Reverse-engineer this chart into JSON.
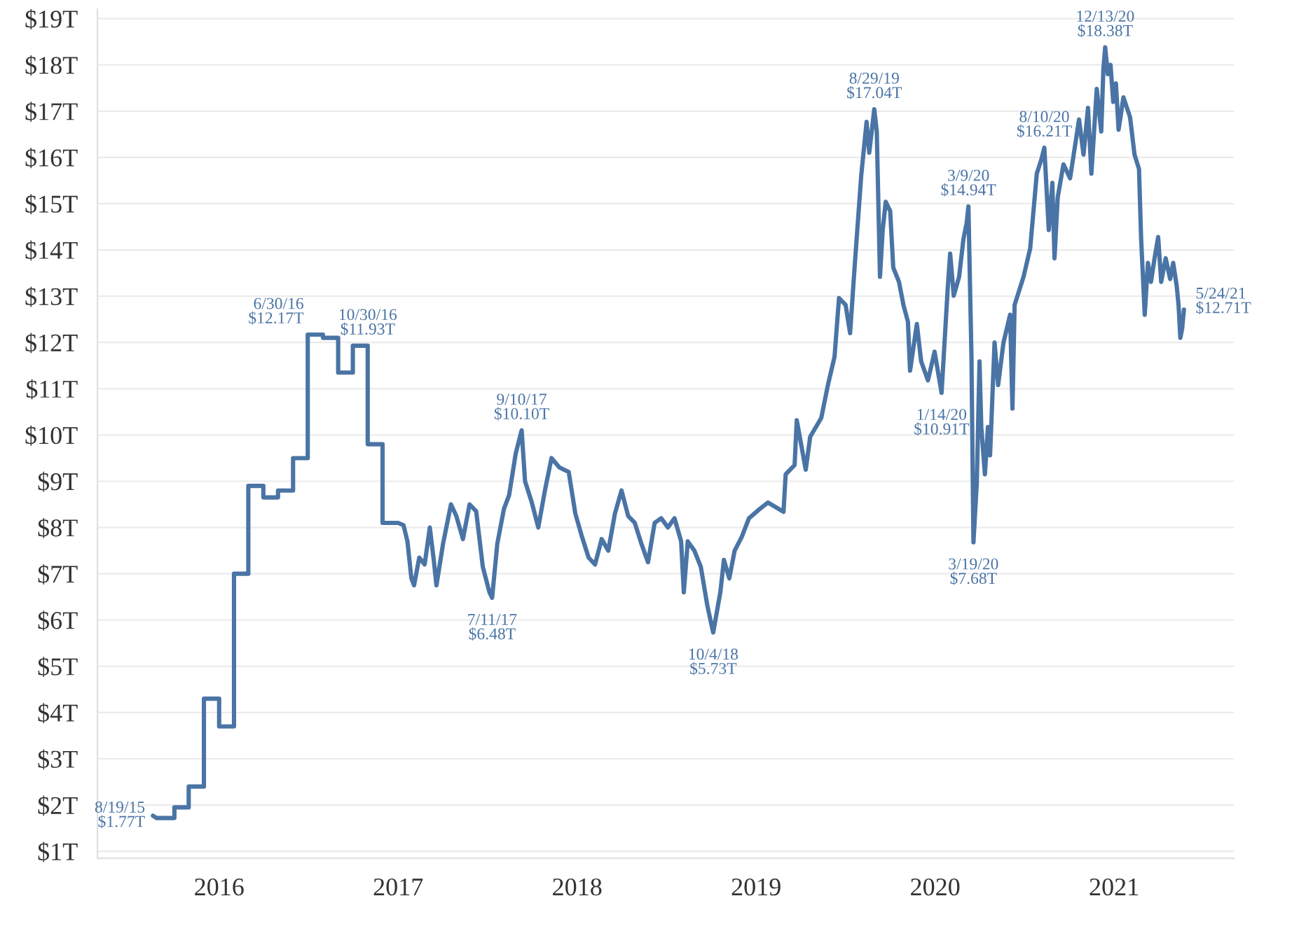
{
  "chart_data": {
    "type": "line",
    "xlim": [
      2015.32,
      2021.67
    ],
    "xticks": [
      2016,
      2017,
      2018,
      2019,
      2020,
      2021
    ],
    "ylim": [
      0.85,
      19.2
    ],
    "yticks": [
      {
        "value": 1,
        "label": "$1T"
      },
      {
        "value": 2,
        "label": "$2T"
      },
      {
        "value": 3,
        "label": "$3T"
      },
      {
        "value": 4,
        "label": "$4T"
      },
      {
        "value": 5,
        "label": "$5T"
      },
      {
        "value": 6,
        "label": "$6T"
      },
      {
        "value": 7,
        "label": "$7T"
      },
      {
        "value": 8,
        "label": "$8T"
      },
      {
        "value": 9,
        "label": "$9T"
      },
      {
        "value": 10,
        "label": "$10T"
      },
      {
        "value": 11,
        "label": "$11T"
      },
      {
        "value": 12,
        "label": "$12T"
      },
      {
        "value": 13,
        "label": "$13T"
      },
      {
        "value": 14,
        "label": "$14T"
      },
      {
        "value": 15,
        "label": "$15T"
      },
      {
        "value": 16,
        "label": "$16T"
      },
      {
        "value": 17,
        "label": "$17T"
      },
      {
        "value": 18,
        "label": "$18T"
      },
      {
        "value": 19,
        "label": "$19T"
      }
    ],
    "grid": "y",
    "line_style": "solid",
    "marker": "none",
    "series": [
      {
        "color": "#4a74a5",
        "x": [
          2015.63,
          2015.65,
          2015.75,
          2015.75,
          2015.83,
          2015.83,
          2015.915,
          2015.915,
          2016.0,
          2016.0,
          2016.083,
          2016.083,
          2016.163,
          2016.163,
          2016.247,
          2016.247,
          2016.329,
          2016.329,
          2016.413,
          2016.413,
          2016.495,
          2016.495,
          2016.58,
          2016.58,
          2016.665,
          2016.665,
          2016.747,
          2016.747,
          2016.83,
          2016.83,
          2016.913,
          2016.913,
          2017.0,
          2017.03,
          2017.052,
          2017.074,
          2017.089,
          2017.118,
          2017.148,
          2017.177,
          2017.199,
          2017.214,
          2017.251,
          2017.295,
          2017.325,
          2017.362,
          2017.399,
          2017.436,
          2017.473,
          2017.51,
          2017.525,
          2017.554,
          2017.591,
          2017.62,
          2017.657,
          2017.69,
          2017.709,
          2017.746,
          2017.783,
          2017.82,
          2017.857,
          2017.901,
          2017.953,
          2017.99,
          2018.027,
          2018.064,
          2018.1,
          2018.137,
          2018.174,
          2018.211,
          2018.248,
          2018.285,
          2018.322,
          2018.359,
          2018.396,
          2018.433,
          2018.47,
          2018.507,
          2018.544,
          2018.581,
          2018.596,
          2018.618,
          2018.655,
          2018.691,
          2018.728,
          2018.76,
          2018.8,
          2018.82,
          2018.85,
          2018.88,
          2018.92,
          2018.96,
          2019.02,
          2019.066,
          2019.153,
          2019.165,
          2019.215,
          2019.227,
          2019.277,
          2019.302,
          2019.364,
          2019.401,
          2019.438,
          2019.463,
          2019.5,
          2019.525,
          2019.55,
          2019.587,
          2019.617,
          2019.632,
          2019.66,
          2019.674,
          2019.692,
          2019.707,
          2019.724,
          2019.749,
          2019.766,
          2019.798,
          2019.823,
          2019.848,
          2019.86,
          2019.898,
          2019.922,
          2019.96,
          2019.997,
          2020.036,
          2020.071,
          2020.084,
          2020.104,
          2020.134,
          2020.158,
          2020.176,
          2020.186,
          2020.203,
          2020.214,
          2020.233,
          2020.248,
          2020.258,
          2020.278,
          2020.295,
          2020.307,
          2020.332,
          2020.352,
          2020.382,
          2020.419,
          2020.432,
          2020.444,
          2020.494,
          2020.531,
          2020.568,
          2020.593,
          2020.61,
          2020.635,
          2020.655,
          2020.667,
          2020.685,
          2020.717,
          2020.754,
          2020.804,
          2020.829,
          2020.854,
          2020.873,
          2020.903,
          2020.928,
          2020.94,
          2020.95,
          2020.965,
          2020.98,
          2020.995,
          2021.01,
          2021.025,
          2021.052,
          2021.089,
          2021.114,
          2021.139,
          2021.151,
          2021.171,
          2021.189,
          2021.206,
          2021.226,
          2021.246,
          2021.263,
          2021.288,
          2021.313,
          2021.33,
          2021.35,
          2021.36,
          2021.37,
          2021.38,
          2021.39
        ],
        "values": [
          1.77,
          1.72,
          1.72,
          1.95,
          1.95,
          2.4,
          2.4,
          4.3,
          4.3,
          3.7,
          3.7,
          7.0,
          7.0,
          8.9,
          8.9,
          8.65,
          8.65,
          8.8,
          8.8,
          9.5,
          9.5,
          12.17,
          12.17,
          12.1,
          12.1,
          11.35,
          11.35,
          11.93,
          11.93,
          9.8,
          9.8,
          8.1,
          8.1,
          8.05,
          7.7,
          6.9,
          6.75,
          7.35,
          7.2,
          8.0,
          7.3,
          6.75,
          7.65,
          8.5,
          8.25,
          7.75,
          8.5,
          8.35,
          7.15,
          6.6,
          6.48,
          7.65,
          8.4,
          8.7,
          9.6,
          10.1,
          9.0,
          8.55,
          8.0,
          8.8,
          9.5,
          9.3,
          9.2,
          8.3,
          7.8,
          7.35,
          7.2,
          7.75,
          7.5,
          8.3,
          8.8,
          8.25,
          8.1,
          7.65,
          7.25,
          8.1,
          8.2,
          8.0,
          8.2,
          7.7,
          6.6,
          7.7,
          7.5,
          7.15,
          6.3,
          5.73,
          6.6,
          7.3,
          6.9,
          7.5,
          7.8,
          8.2,
          8.4,
          8.54,
          8.34,
          9.15,
          9.35,
          10.32,
          9.25,
          9.96,
          10.37,
          11.08,
          11.69,
          12.96,
          12.81,
          12.2,
          13.62,
          15.6,
          16.77,
          16.1,
          17.04,
          16.56,
          13.42,
          14.43,
          15.04,
          14.84,
          13.62,
          13.31,
          12.81,
          12.45,
          11.39,
          12.4,
          11.59,
          11.18,
          11.8,
          10.91,
          13.21,
          13.92,
          13.01,
          13.42,
          14.23,
          14.58,
          14.94,
          11.69,
          7.68,
          8.97,
          11.59,
          10.17,
          9.15,
          10.17,
          9.56,
          12.0,
          11.08,
          12.0,
          12.6,
          10.57,
          12.81,
          13.42,
          14.03,
          15.65,
          15.95,
          16.21,
          14.43,
          15.45,
          13.82,
          15.14,
          15.85,
          15.55,
          16.82,
          16.06,
          17.07,
          15.65,
          17.48,
          16.56,
          17.9,
          18.38,
          17.8,
          18.0,
          17.2,
          17.6,
          16.6,
          17.3,
          16.87,
          16.06,
          15.75,
          14.23,
          12.6,
          13.72,
          13.31,
          13.82,
          14.28,
          13.31,
          13.82,
          13.37,
          13.72,
          13.21,
          12.81,
          12.1,
          12.3,
          12.71
        ]
      }
    ],
    "annotations": [
      {
        "text": "8/19/15\n$1.77T",
        "x": 2015.63,
        "y": 1.77
      },
      {
        "text": "6/30/16\n$12.17T",
        "x": 2016.495,
        "y": 12.17
      },
      {
        "text": "10/30/16\n$11.93T",
        "x": 2016.83,
        "y": 11.93
      },
      {
        "text": "7/11/17\n$6.48T",
        "x": 2017.525,
        "y": 6.48
      },
      {
        "text": "9/10/17\n$10.10T",
        "x": 2017.69,
        "y": 10.1
      },
      {
        "text": "10/4/18\n$5.73T",
        "x": 2018.76,
        "y": 5.73
      },
      {
        "text": "8/29/19\n$17.04T",
        "x": 2019.66,
        "y": 17.04
      },
      {
        "text": "1/14/20\n$10.91T",
        "x": 2020.036,
        "y": 10.91
      },
      {
        "text": "3/9/20\n$14.94T",
        "x": 2020.186,
        "y": 14.94
      },
      {
        "text": "3/19/20\n$7.68T",
        "x": 2020.214,
        "y": 7.68
      },
      {
        "text": "8/10/20\n$16.21T",
        "x": 2020.61,
        "y": 16.21
      },
      {
        "text": "12/13/20\n$18.38T",
        "x": 2020.95,
        "y": 18.38
      },
      {
        "text": "5/24/21\n$12.71T",
        "x": 2021.39,
        "y": 12.71
      }
    ]
  }
}
